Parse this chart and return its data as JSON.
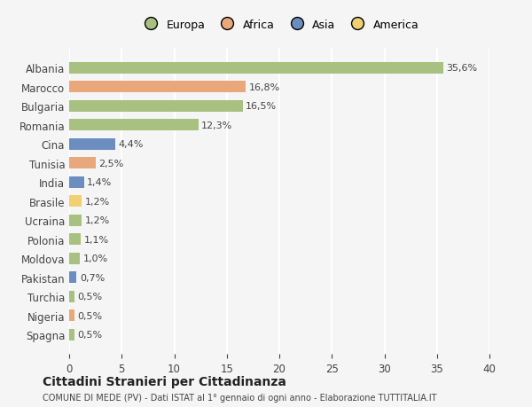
{
  "categories": [
    "Albania",
    "Marocco",
    "Bulgaria",
    "Romania",
    "Cina",
    "Tunisia",
    "India",
    "Brasile",
    "Ucraina",
    "Polonia",
    "Moldova",
    "Pakistan",
    "Turchia",
    "Nigeria",
    "Spagna"
  ],
  "values": [
    35.6,
    16.8,
    16.5,
    12.3,
    4.4,
    2.5,
    1.4,
    1.2,
    1.2,
    1.1,
    1.0,
    0.7,
    0.5,
    0.5,
    0.5
  ],
  "labels": [
    "35,6%",
    "16,8%",
    "16,5%",
    "12,3%",
    "4,4%",
    "2,5%",
    "1,4%",
    "1,2%",
    "1,2%",
    "1,1%",
    "1,0%",
    "0,7%",
    "0,5%",
    "0,5%",
    "0,5%"
  ],
  "colors": [
    "#a8c080",
    "#e8a87c",
    "#a8c080",
    "#a8c080",
    "#6b8dbf",
    "#e8a87c",
    "#6b8dbf",
    "#f0d070",
    "#a8c080",
    "#a8c080",
    "#a8c080",
    "#6b8dbf",
    "#a8c080",
    "#e8a87c",
    "#a8c080"
  ],
  "legend_labels": [
    "Europa",
    "Africa",
    "Asia",
    "America"
  ],
  "legend_colors": [
    "#a8c080",
    "#e8a87c",
    "#6b8dbf",
    "#f0d070"
  ],
  "title": "Cittadini Stranieri per Cittadinanza",
  "subtitle": "COMUNE DI MEDE (PV) - Dati ISTAT al 1° gennaio di ogni anno - Elaborazione TUTTITALIA.IT",
  "xlim": [
    0,
    40
  ],
  "xticks": [
    0,
    5,
    10,
    15,
    20,
    25,
    30,
    35,
    40
  ],
  "background_color": "#f5f5f5",
  "grid_color": "#ffffff",
  "bar_height": 0.6
}
